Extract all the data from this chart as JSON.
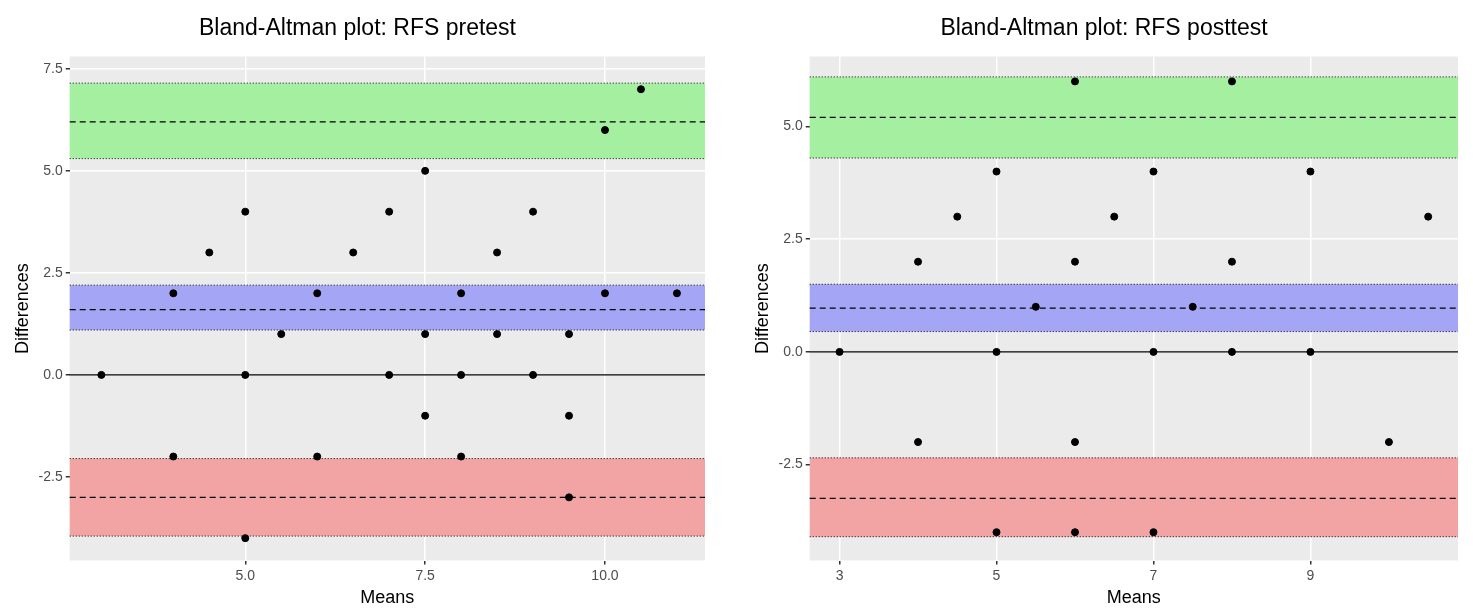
{
  "chart_data": [
    {
      "type": "scatter",
      "title": "Bland-Altman plot: RFS pretest",
      "xlabel": "Means",
      "ylabel": "Differences",
      "color": "#000000",
      "marker": "circle",
      "grid": true,
      "legend": false,
      "x": [
        3,
        4,
        4,
        4.5,
        5,
        5,
        5,
        5.5,
        6,
        6,
        6.5,
        7,
        7,
        7.5,
        7.5,
        7.5,
        8,
        8,
        8,
        8.5,
        8.5,
        9,
        9,
        9.5,
        9.5,
        9.5,
        10,
        10,
        10.5,
        11
      ],
      "values": [
        0,
        2,
        -2,
        3,
        4,
        0,
        -4,
        1,
        2,
        -2,
        3,
        4,
        0,
        5,
        1,
        -1,
        2,
        0,
        -2,
        3,
        1,
        4,
        0,
        1,
        -1,
        -3,
        6,
        2,
        7,
        2
      ],
      "xlim": [
        2.56,
        11.39
      ],
      "xticks": [
        {
          "value": 5,
          "label": "5.0"
        },
        {
          "value": 7.5,
          "label": "7.5"
        },
        {
          "value": 10,
          "label": "10.0"
        }
      ],
      "ylim": [
        -4.55,
        7.8
      ],
      "yticks": [
        {
          "value": -2.5,
          "label": "-2.5"
        },
        {
          "value": 0,
          "label": "0.0"
        },
        {
          "value": 2.5,
          "label": "2.5"
        },
        {
          "value": 5,
          "label": "5.0"
        },
        {
          "value": 7.5,
          "label": "7.5"
        }
      ],
      "ref_lines": [
        {
          "axis": "y",
          "value": 0,
          "line_style": "solid",
          "color": "#000000"
        },
        {
          "axis": "y",
          "value": 6.2,
          "line_style": "dashed",
          "color": "#000000"
        },
        {
          "axis": "y",
          "value": 1.6,
          "line_style": "dashed",
          "color": "#000000"
        },
        {
          "axis": "y",
          "value": -3,
          "line_style": "dashed",
          "color": "#000000"
        }
      ],
      "bands": [
        {
          "axis": "y",
          "from": 5.3,
          "to": 7.15,
          "color": "#a4f0a0"
        },
        {
          "axis": "y",
          "from": 1.1,
          "to": 2.2,
          "color": "#a5a5f5"
        },
        {
          "axis": "y",
          "from": -3.95,
          "to": -2.05,
          "color": "#f2a4a4"
        }
      ]
    },
    {
      "type": "scatter",
      "title": "Bland-Altman plot: RFS posttest",
      "xlabel": "Means",
      "ylabel": "Differences",
      "color": "#000000",
      "marker": "circle",
      "grid": true,
      "legend": false,
      "x": [
        3,
        4,
        4,
        4.5,
        5,
        5,
        5,
        5.5,
        6,
        6,
        6,
        6,
        6.5,
        7,
        7,
        7,
        7.5,
        8,
        8,
        8,
        9,
        9,
        10,
        10.5
      ],
      "values": [
        0,
        2,
        -2,
        3,
        4,
        0,
        -4,
        1,
        6,
        2,
        -2,
        -4,
        3,
        4,
        0,
        -4,
        1,
        6,
        2,
        0,
        4,
        0,
        -2,
        3
      ],
      "xlim": [
        2.62,
        10.88
      ],
      "xticks": [
        3,
        5,
        7,
        9
      ],
      "ylim": [
        -4.63,
        6.55
      ],
      "yticks": [
        {
          "value": -2.5,
          "label": "-2.5"
        },
        {
          "value": 0,
          "label": "0.0"
        },
        {
          "value": 2.5,
          "label": "2.5"
        },
        {
          "value": 5,
          "label": "5.0"
        }
      ],
      "ref_lines": [
        {
          "axis": "y",
          "value": 0,
          "line_style": "solid",
          "color": "#000000"
        },
        {
          "axis": "y",
          "value": 5.2,
          "line_style": "dashed",
          "color": "#000000"
        },
        {
          "axis": "y",
          "value": 0.97,
          "line_style": "dashed",
          "color": "#000000"
        },
        {
          "axis": "y",
          "value": -3.25,
          "line_style": "dashed",
          "color": "#000000"
        }
      ],
      "bands": [
        {
          "axis": "y",
          "from": 4.3,
          "to": 6.1,
          "color": "#a4f0a0"
        },
        {
          "axis": "y",
          "from": 0.45,
          "to": 1.5,
          "color": "#a5a5f5"
        },
        {
          "axis": "y",
          "from": -4.1,
          "to": -2.35,
          "color": "#f2a4a4"
        }
      ]
    }
  ]
}
